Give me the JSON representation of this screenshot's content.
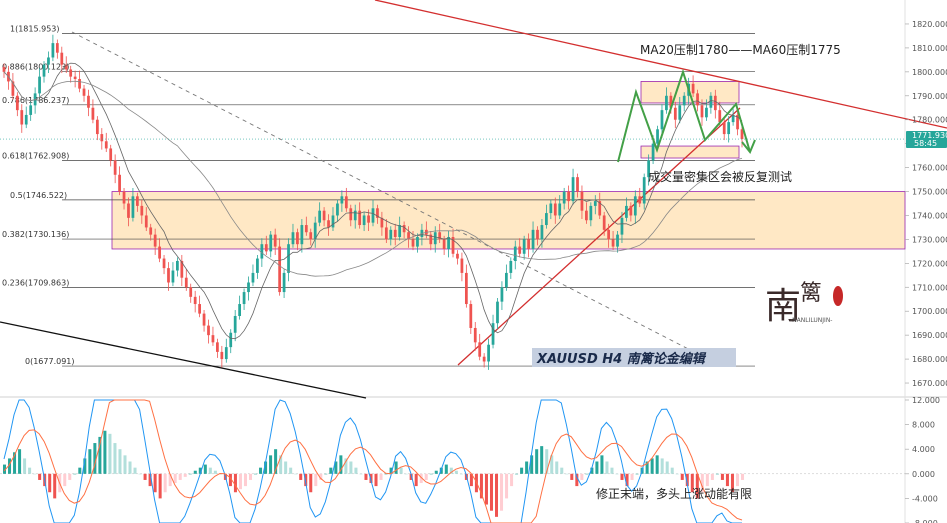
{
  "chart_data": {
    "type": "candlestick",
    "symbol_title": "XAUUSD  H4  南篱论金编辑",
    "price_axis": {
      "min": 1665,
      "max": 1825,
      "ticks": [
        "1820.000",
        "1810.000",
        "1800.000",
        "1790.000",
        "1780.000",
        "1770.000",
        "1760.000",
        "1750.000",
        "1740.000",
        "1730.000",
        "1720.000",
        "1710.000",
        "1700.000",
        "1690.000",
        "1680.000",
        "1670.000"
      ]
    },
    "current_price": {
      "value": 1771.93,
      "label": "1771.930",
      "countdown": "58:45",
      "color": "#26a69a"
    },
    "fib_levels": [
      {
        "ratio": "1",
        "price": 1815.953,
        "label": "1(1815.953)"
      },
      {
        "ratio": "0.886",
        "price": 1800.123,
        "label": "0.886(1800.123)"
      },
      {
        "ratio": "0.786",
        "price": 1786.237,
        "label": "0.786(1786.237)"
      },
      {
        "ratio": "0.618",
        "price": 1762.908,
        "label": "0.618(1762.908)"
      },
      {
        "ratio": "0.5",
        "price": 1746.522,
        "label": "0.5(1746.522)"
      },
      {
        "ratio": "0.382",
        "price": 1730.136,
        "label": "0.382(1730.136)"
      },
      {
        "ratio": "0.236",
        "price": 1709.863,
        "label": "0.236(1709.863)"
      },
      {
        "ratio": "0",
        "price": 1677.091,
        "label": "0(1677.091)"
      }
    ],
    "zones": [
      {
        "name": "volume-dense-zone",
        "from": 1726,
        "to": 1750
      },
      {
        "name": "upper-resistance-zone",
        "from": 1787,
        "to": 1796
      },
      {
        "name": "lower-support-zone",
        "from": 1764,
        "to": 1769
      }
    ],
    "annotations": {
      "ma_resistance": "MA20压制1780——MA60压制1775",
      "volume_zone": "成交量密集区会被反复测试",
      "macd_note": "修正末端，多头上涨动能有限"
    },
    "macd_axis": {
      "min": -8,
      "max": 12,
      "ticks": [
        "12.000",
        "8.000",
        "4.000",
        "0.000",
        "-4.000",
        "-8.000"
      ]
    },
    "colors": {
      "up": "#26a69a",
      "down": "#ef5350",
      "zone": "#ffe0b2",
      "zone_border": "#9c27b0",
      "trend_red": "#d32f2f",
      "pattern_green": "#43a047",
      "macd_fast": "#2196f3",
      "macd_slow": "#ff7043"
    },
    "watermark_logo": "南篱 NANLILUNJIN",
    "candles_close": [
      1800,
      1796,
      1790,
      1784,
      1778,
      1782,
      1786,
      1791,
      1798,
      1803,
      1806,
      1812,
      1808,
      1803,
      1801,
      1798,
      1797,
      1793,
      1790,
      1785,
      1780,
      1774,
      1771,
      1768,
      1763,
      1757,
      1750,
      1745,
      1739,
      1748,
      1744,
      1740,
      1735,
      1732,
      1727,
      1722,
      1718,
      1712,
      1717,
      1721,
      1714,
      1710,
      1706,
      1703,
      1699,
      1694,
      1690,
      1687,
      1683,
      1680,
      1685,
      1691,
      1698,
      1703,
      1708,
      1712,
      1716,
      1722,
      1728,
      1725,
      1732,
      1727,
      1708,
      1716,
      1728,
      1733,
      1728,
      1736,
      1733,
      1730,
      1737,
      1742,
      1738,
      1735,
      1740,
      1745,
      1748,
      1743,
      1738,
      1742,
      1736,
      1740,
      1737,
      1743,
      1739,
      1735,
      1730,
      1734,
      1731,
      1736,
      1733,
      1730,
      1727,
      1731,
      1734,
      1732,
      1728,
      1733,
      1730,
      1726,
      1731,
      1724,
      1722,
      1716,
      1703,
      1693,
      1687,
      1681,
      1679,
      1686,
      1695,
      1704,
      1710,
      1716,
      1721,
      1727,
      1724,
      1730,
      1726,
      1734,
      1730,
      1736,
      1741,
      1745,
      1740,
      1745,
      1750,
      1746,
      1756,
      1750,
      1742,
      1738,
      1744,
      1746,
      1740,
      1734,
      1730,
      1727,
      1732,
      1739,
      1744,
      1740,
      1748,
      1745,
      1756,
      1763,
      1770,
      1776,
      1784,
      1790,
      1785,
      1780,
      1786,
      1790,
      1795,
      1791,
      1786,
      1781,
      1785,
      1790,
      1784,
      1779,
      1774,
      1779,
      1782,
      1776,
      1771.93
    ],
    "macd_hist": [
      1.5,
      2.5,
      3.5,
      4,
      2.5,
      1,
      0,
      -1,
      -2,
      -3,
      -4,
      -3,
      -2,
      -1,
      0,
      1,
      2.5,
      4,
      5,
      6,
      7,
      6.5,
      5,
      4,
      3,
      2,
      1,
      0,
      -1,
      -2,
      -3,
      -4,
      -3,
      -2,
      -1.5,
      -1,
      -0.5,
      0,
      0.5,
      1,
      1.5,
      1,
      0.5,
      0,
      -1,
      -2,
      -3,
      -2.5,
      -2,
      -1,
      0,
      1,
      2,
      3,
      4,
      3,
      2,
      1,
      0,
      -1,
      -2,
      -3,
      -2,
      -1,
      0,
      1,
      2,
      3,
      2.5,
      2,
      1,
      0,
      -1,
      -1.5,
      -2,
      -1,
      0,
      1,
      2,
      1,
      0,
      -1,
      -2,
      -1.5,
      -1,
      0,
      0.5,
      1,
      1.5,
      1,
      0.5,
      0,
      -1,
      -2,
      -3,
      -4,
      -5,
      -6,
      -7,
      -6,
      -4,
      -2,
      0,
      1,
      2,
      3,
      4,
      4.5,
      4,
      3,
      2,
      1,
      0,
      -1,
      -2,
      -1,
      0,
      1,
      2,
      3,
      2,
      1,
      0,
      -1,
      -2,
      -1,
      0,
      1,
      2,
      2.5,
      3,
      2.5,
      2,
      1,
      0,
      -1,
      -2,
      -3,
      -4,
      -3,
      -2,
      -1,
      0,
      -1,
      -2,
      -3,
      -2,
      -1
    ]
  }
}
